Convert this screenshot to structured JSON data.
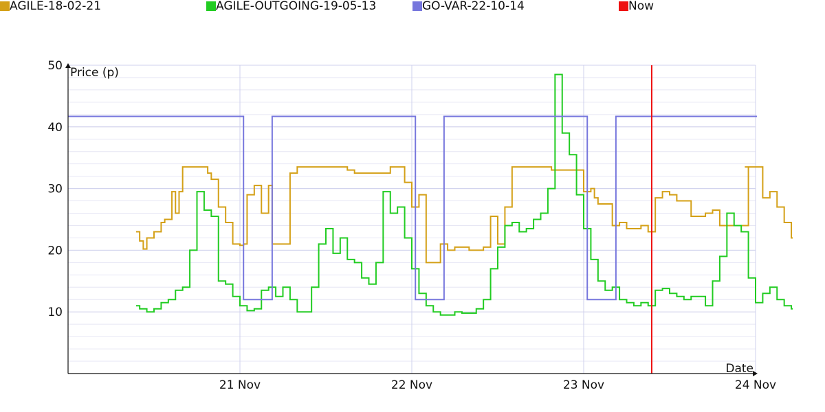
{
  "legend": {
    "items": [
      {
        "label": "AGILE-18-02-21",
        "color": "#d4a017"
      },
      {
        "label": "AGILE-OUTGOING-19-05-13",
        "color": "#22cc22"
      },
      {
        "label": "GO-VAR-22-10-14",
        "color": "#7777dd"
      },
      {
        "label": "Now",
        "color": "#ee1111"
      }
    ]
  },
  "chart_data": {
    "type": "line",
    "step": true,
    "xlabel": "Date",
    "ylabel": "Price (p)",
    "ylim": [
      0,
      50
    ],
    "xlim": [
      "2023-11-20",
      "2023-11-24"
    ],
    "y_major_ticks": [
      10,
      20,
      30,
      40,
      50
    ],
    "y_minor_step": 2,
    "x_ticks": [
      {
        "value": "2023-11-21",
        "label": "21 Nov"
      },
      {
        "value": "2023-11-22",
        "label": "22 Nov"
      },
      {
        "value": "2023-11-23",
        "label": "23 Nov"
      },
      {
        "value": "2023-11-24",
        "label": "24 Nov"
      }
    ],
    "grid": true,
    "legend_position": "top",
    "now": "2023-11-23 09:30",
    "series": [
      {
        "name": "AGILE-18-02-21",
        "color": "#d4a017",
        "x": [
          "2023-11-20 09:30",
          "2023-11-20 10:00",
          "2023-11-20 10:30",
          "2023-11-20 11:00",
          "2023-11-20 12:00",
          "2023-11-20 13:00",
          "2023-11-20 13:30",
          "2023-11-20 14:30",
          "2023-11-20 15:00",
          "2023-11-20 15:30",
          "2023-11-20 16:00",
          "2023-11-20 17:00",
          "2023-11-20 19:30",
          "2023-11-20 20:00",
          "2023-11-20 21:00",
          "2023-11-20 22:00",
          "2023-11-20 23:00",
          "2023-11-21 00:00",
          "2023-11-21 00:30",
          "2023-11-21 01:00",
          "2023-11-21 02:00",
          "2023-11-21 03:00",
          "2023-11-21 04:00",
          "2023-11-21 04:30",
          "2023-11-21 06:00",
          "2023-11-21 07:00",
          "2023-11-21 08:00",
          "2023-11-21 14:00",
          "2023-11-21 15:00",
          "2023-11-21 16:00",
          "2023-11-21 21:00",
          "2023-11-21 22:00",
          "2023-11-21 23:00",
          "2023-11-22 00:00",
          "2023-11-22 01:00",
          "2023-11-22 02:00",
          "2023-11-22 04:00",
          "2023-11-22 05:00",
          "2023-11-22 06:00",
          "2023-11-22 08:00",
          "2023-11-22 10:00",
          "2023-11-22 11:00",
          "2023-11-22 12:00",
          "2023-11-22 13:00",
          "2023-11-22 14:00",
          "2023-11-22 15:00",
          "2023-11-22 16:00",
          "2023-11-22 17:00",
          "2023-11-22 19:00",
          "2023-11-22 19:30",
          "2023-11-23 00:00",
          "2023-11-23 01:00",
          "2023-11-23 01:30",
          "2023-11-23 02:00",
          "2023-11-23 04:00",
          "2023-11-23 05:00",
          "2023-11-23 06:00",
          "2023-11-23 08:00",
          "2023-11-23 09:00",
          "2023-11-23 10:00",
          "2023-11-23 11:00",
          "2023-11-23 12:00",
          "2023-11-23 13:00",
          "2023-11-23 15:00",
          "2023-11-23 16:00",
          "2023-11-23 17:00",
          "2023-11-23 18:00",
          "2023-11-23 19:00",
          "2023-11-23 23:00",
          "2023-11-23 22:30",
          "2023-11-24 01:00",
          "2023-11-24 02:00",
          "2023-11-24 03:00",
          "2023-11-24 04:00",
          "2023-11-24 05:00"
        ],
        "values": [
          23,
          21.5,
          20.2,
          22,
          23,
          24.5,
          25,
          29.5,
          26,
          29.5,
          33.5,
          33.5,
          32.5,
          31.5,
          27,
          24.5,
          21,
          20.8,
          21,
          29,
          30.5,
          26,
          30.5,
          21,
          21,
          32.5,
          33.5,
          33.5,
          33,
          32.5,
          33.5,
          33.5,
          31,
          27,
          29,
          18,
          21,
          20,
          20.5,
          20,
          20.5,
          25.5,
          21,
          27,
          33.5,
          33.5,
          33.5,
          33.5,
          33.5,
          33,
          29.5,
          30,
          28.5,
          27.5,
          24,
          24.5,
          23.5,
          24,
          23,
          28.5,
          29.5,
          29,
          28,
          25.5,
          25.5,
          26,
          26.5,
          24,
          33.5,
          33.5,
          28.5,
          29.5,
          27,
          24.5,
          22
        ]
      },
      {
        "name": "AGILE-OUTGOING-19-05-13",
        "color": "#22cc22",
        "x": [
          "2023-11-20 09:30",
          "2023-11-20 10:00",
          "2023-11-20 11:00",
          "2023-11-20 12:00",
          "2023-11-20 13:00",
          "2023-11-20 14:00",
          "2023-11-20 15:00",
          "2023-11-20 16:00",
          "2023-11-20 17:00",
          "2023-11-20 18:00",
          "2023-11-20 19:00",
          "2023-11-20 20:00",
          "2023-11-20 21:00",
          "2023-11-20 22:00",
          "2023-11-20 23:00",
          "2023-11-21 00:00",
          "2023-11-21 01:00",
          "2023-11-21 02:00",
          "2023-11-21 03:00",
          "2023-11-21 04:00",
          "2023-11-21 05:00",
          "2023-11-21 06:00",
          "2023-11-21 07:00",
          "2023-11-21 08:00",
          "2023-11-21 09:00",
          "2023-11-21 10:00",
          "2023-11-21 11:00",
          "2023-11-21 12:00",
          "2023-11-21 13:00",
          "2023-11-21 14:00",
          "2023-11-21 15:00",
          "2023-11-21 16:00",
          "2023-11-21 17:00",
          "2023-11-21 18:00",
          "2023-11-21 19:00",
          "2023-11-21 20:00",
          "2023-11-21 21:00",
          "2023-11-21 22:00",
          "2023-11-21 23:00",
          "2023-11-22 00:00",
          "2023-11-22 01:00",
          "2023-11-22 02:00",
          "2023-11-22 03:00",
          "2023-11-22 04:00",
          "2023-11-22 06:00",
          "2023-11-22 07:00",
          "2023-11-22 08:00",
          "2023-11-22 09:00",
          "2023-11-22 10:00",
          "2023-11-22 11:00",
          "2023-11-22 12:00",
          "2023-11-22 13:00",
          "2023-11-22 14:00",
          "2023-11-22 15:00",
          "2023-11-22 16:00",
          "2023-11-22 17:00",
          "2023-11-22 18:00",
          "2023-11-22 19:00",
          "2023-11-22 20:00",
          "2023-11-22 21:00",
          "2023-11-22 22:00",
          "2023-11-22 23:00",
          "2023-11-23 00:00",
          "2023-11-23 01:00",
          "2023-11-23 02:00",
          "2023-11-23 03:00",
          "2023-11-23 04:00",
          "2023-11-23 05:00",
          "2023-11-23 06:00",
          "2023-11-23 07:00",
          "2023-11-23 08:00",
          "2023-11-23 09:00",
          "2023-11-23 10:00",
          "2023-11-23 11:00",
          "2023-11-23 12:00",
          "2023-11-23 13:00",
          "2023-11-23 14:00",
          "2023-11-23 15:00",
          "2023-11-23 16:00",
          "2023-11-23 17:00",
          "2023-11-23 18:00",
          "2023-11-23 19:00",
          "2023-11-23 20:00",
          "2023-11-23 21:00",
          "2023-11-23 22:00",
          "2023-11-23 23:00",
          "2023-11-24 00:00",
          "2023-11-24 01:00",
          "2023-11-24 02:00",
          "2023-11-24 03:00",
          "2023-11-24 04:00",
          "2023-11-24 05:00"
        ],
        "values": [
          11,
          10.5,
          10,
          10.5,
          11.5,
          12,
          13.5,
          14,
          20,
          29.5,
          26.5,
          25.5,
          15,
          14.5,
          12.5,
          11,
          10.2,
          10.5,
          13.5,
          14,
          12.5,
          14,
          12,
          10,
          10,
          14,
          21,
          23.5,
          19.5,
          22,
          18.5,
          18,
          15.5,
          14.5,
          18,
          29.5,
          26,
          27,
          22,
          17,
          13,
          11,
          10,
          9.5,
          10,
          9.8,
          9.8,
          10.5,
          12,
          17,
          20.5,
          24,
          24.5,
          23,
          23.5,
          25,
          26,
          30,
          48.5,
          39,
          35.5,
          29,
          23.5,
          18.5,
          15,
          13.5,
          14,
          12,
          11.5,
          11,
          11.5,
          11,
          13.5,
          13.8,
          13,
          12.5,
          12,
          12.5,
          12.5,
          11,
          15,
          19,
          26,
          24,
          23,
          15.5,
          11.5,
          13,
          14,
          12,
          11,
          10.5
        ]
      },
      {
        "name": "GO-VAR-22-10-14",
        "color": "#7777dd",
        "x": [
          "2023-11-20 00:00",
          "2023-11-21 00:30",
          "2023-11-21 04:30",
          "2023-11-22 00:30",
          "2023-11-22 04:30",
          "2023-11-23 00:30",
          "2023-11-23 04:30",
          "2023-11-24 00:00"
        ],
        "values": [
          41.7,
          12,
          41.7,
          12,
          41.7,
          12,
          41.7,
          41.7
        ]
      }
    ]
  }
}
